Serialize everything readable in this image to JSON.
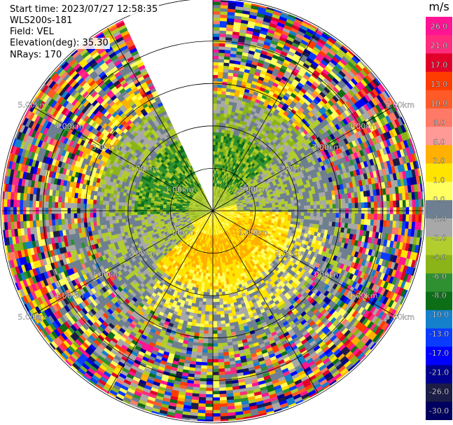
{
  "header": {
    "start_time": "Start time: 2023/07/27 12:58:35",
    "instrument": "WLS200s-181",
    "field": "Field: VEL",
    "elevation": "Elevation(deg): 35.30",
    "nrays": "NRays: 170"
  },
  "chart_data": {
    "type": "heatmap",
    "subtype": "radar-ppi",
    "field": "VEL",
    "units": "m/s",
    "elevation_deg": 35.3,
    "n_rays": 170,
    "range_rings_km": [
      1.0,
      2.0,
      3.0,
      4.0,
      5.0
    ],
    "range_ring_labels": [
      "1.00km",
      "2.00km",
      "3.00km",
      "4.00km",
      "5.00km"
    ],
    "max_range_km": 5.8,
    "missing_sector_az_deg": [
      335,
      360
    ],
    "colorbar": {
      "title": "m/s",
      "tick_labels": [
        "26.0",
        "21.0",
        "17.0",
        "13.0",
        "10.0",
        "8.0",
        "6.0",
        "2.0",
        "1.0",
        "0.0",
        "-1.0",
        "-2.0",
        "-4.0",
        "-6.0",
        "-8.0",
        "-10.0",
        "-13.0",
        "-17.0",
        "-21.0",
        "-26.0",
        "-30.0"
      ],
      "colors": [
        "#ff1493",
        "#ff2c7e",
        "#e0002a",
        "#ff3c00",
        "#ff5a28",
        "#ff7a66",
        "#ff9a96",
        "#ffb000",
        "#ffe400",
        "#ffff60",
        "#6e7f91",
        "#a8a8a8",
        "#b2cd2e",
        "#8ab418",
        "#2e9030",
        "#0d6e18",
        "#1480cc",
        "#0a3cff",
        "#0000ff",
        "#000090",
        "#1c1c48",
        "#000060"
      ]
    },
    "velocity_pattern": [
      {
        "region": "near-range south/southeast",
        "sign": "positive",
        "approx_m_s": [
          2,
          6
        ]
      },
      {
        "region": "near-range north/west",
        "sign": "negative",
        "approx_m_s": [
          -8,
          -2
        ]
      },
      {
        "region": "outer ranges",
        "note": "noisy, mixed values"
      }
    ]
  }
}
